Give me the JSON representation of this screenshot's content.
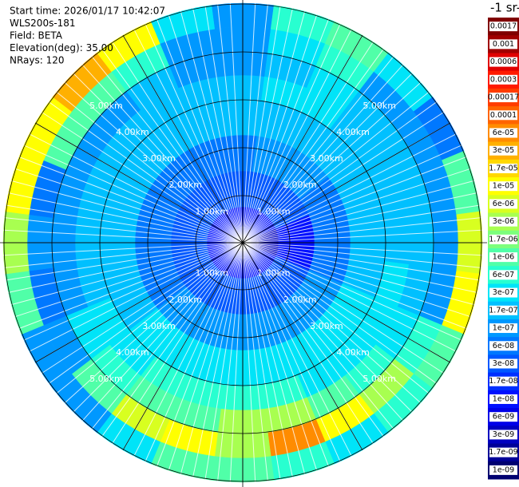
{
  "chart_data": {
    "type": "polar-heatmap",
    "header": [
      "Start time: 2026/01/17 10:42:07",
      "WLS200s-181",
      "Field: BETA",
      "Elevation(deg): 35.00",
      "NRays: 120"
    ],
    "colorbar_title": "-1 sr-",
    "colorbar": [
      {
        "value": 0.0017,
        "label": "0.0017"
      },
      {
        "value": 0.001,
        "label": "0.001"
      },
      {
        "value": 0.0006,
        "label": "0.0006"
      },
      {
        "value": 0.0003,
        "label": "0.0003"
      },
      {
        "value": 0.00017,
        "label": "0.00017"
      },
      {
        "value": 0.0001,
        "label": "0.0001"
      },
      {
        "value": 6e-05,
        "label": "6e-05"
      },
      {
        "value": 3e-05,
        "label": "3e-05"
      },
      {
        "value": 1.7e-05,
        "label": "1.7e-05"
      },
      {
        "value": 1e-05,
        "label": "1e-05"
      },
      {
        "value": 6e-06,
        "label": "6e-06"
      },
      {
        "value": 3e-06,
        "label": "3e-06"
      },
      {
        "value": 1.7e-06,
        "label": "1.7e-06"
      },
      {
        "value": 1e-06,
        "label": "1e-06"
      },
      {
        "value": 6e-07,
        "label": "6e-07"
      },
      {
        "value": 3e-07,
        "label": "3e-07"
      },
      {
        "value": 1.7e-07,
        "label": "1.7e-07"
      },
      {
        "value": 1e-07,
        "label": "1e-07"
      },
      {
        "value": 6e-08,
        "label": "6e-08"
      },
      {
        "value": 3e-08,
        "label": "3e-08"
      },
      {
        "value": 1.7e-08,
        "label": "1.7e-08"
      },
      {
        "value": 1e-08,
        "label": "1e-08"
      },
      {
        "value": 6e-09,
        "label": "6e-09"
      },
      {
        "value": 3e-09,
        "label": "3e-09"
      },
      {
        "value": 1.7e-09,
        "label": "1.7e-09"
      },
      {
        "value": 1e-09,
        "label": "1e-09"
      }
    ],
    "colors": [
      "#800000",
      "#a00000",
      "#e00000",
      "#ff1a00",
      "#ff3c00",
      "#ff6400",
      "#ff8c00",
      "#ffb000",
      "#ffd800",
      "#ffff00",
      "#d8ff20",
      "#a8ff50",
      "#7cff7c",
      "#50ffa8",
      "#28ffd0",
      "#00e4f8",
      "#00c0ff",
      "#0098ff",
      "#0078ff",
      "#0058ff",
      "#0030ff",
      "#0010ff",
      "#0000e8",
      "#0000c0",
      "#000098",
      "#000070"
    ],
    "rlim": [
      0,
      5
    ],
    "rticks": [
      {
        "value": 1,
        "label": "1.00km"
      },
      {
        "value": 2,
        "label": "2.00km"
      },
      {
        "value": 3,
        "label": "3.00km"
      },
      {
        "value": 4,
        "label": "4.00km"
      },
      {
        "value": 5,
        "label": "5.00km"
      }
    ],
    "range_edges": [
      0.1,
      0.75,
      1.5,
      2.25,
      3,
      3.5,
      4,
      4.5,
      5
    ],
    "azimuths": [
      0,
      15,
      30,
      45,
      60,
      75,
      90,
      105,
      120,
      135,
      150,
      165,
      180,
      195,
      210,
      225,
      240,
      255,
      270,
      285,
      300,
      315,
      330,
      345
    ],
    "values": [
      [
        1e-08,
        3e-08,
        6e-08,
        1.7e-07,
        1.7e-07,
        1e-07,
        1e-07,
        1e-07
      ],
      [
        1e-08,
        3e-08,
        1e-07,
        1.7e-07,
        3e-07,
        1.7e-07,
        3e-07,
        6e-07
      ],
      [
        1e-08,
        3e-08,
        1e-07,
        1.7e-07,
        3e-07,
        3e-07,
        6e-07,
        1e-06
      ],
      [
        1e-08,
        3e-08,
        1e-07,
        1.7e-07,
        1.7e-07,
        1.7e-07,
        1e-07,
        3e-07
      ],
      [
        1e-08,
        3e-08,
        6e-08,
        1.7e-07,
        1.7e-07,
        1.7e-07,
        1e-07,
        6e-08
      ],
      [
        3e-09,
        1e-08,
        6e-08,
        1.7e-07,
        1.7e-07,
        1.7e-07,
        1e-07,
        1e-06
      ],
      [
        3e-09,
        1e-08,
        6e-08,
        1.7e-07,
        1.7e-07,
        1.7e-07,
        1e-07,
        6e-06
      ],
      [
        3e-09,
        1e-08,
        6e-08,
        1.7e-07,
        3e-07,
        1.7e-07,
        1e-07,
        1e-05
      ],
      [
        1e-08,
        3e-08,
        1e-07,
        3e-07,
        3e-07,
        3e-07,
        6e-07,
        1e-06
      ],
      [
        1e-08,
        3e-08,
        1e-07,
        3e-07,
        3e-07,
        6e-07,
        3e-06,
        6e-07
      ],
      [
        1e-08,
        3e-08,
        1e-07,
        3e-07,
        3e-07,
        1e-06,
        1e-05,
        3e-07
      ],
      [
        1e-08,
        3e-08,
        1e-07,
        3e-07,
        6e-07,
        3e-06,
        6e-05,
        6e-07
      ],
      [
        1e-08,
        3e-08,
        1e-07,
        3e-07,
        6e-07,
        3e-06,
        3e-06,
        1e-06
      ],
      [
        1e-08,
        3e-08,
        1e-07,
        3e-07,
        6e-07,
        1e-06,
        1e-05,
        1e-06
      ],
      [
        1e-08,
        3e-08,
        1e-07,
        3e-07,
        6e-07,
        1e-06,
        6e-06,
        3e-07
      ],
      [
        1e-08,
        3e-08,
        1e-07,
        3e-07,
        3e-07,
        6e-07,
        1e-06,
        1e-07
      ],
      [
        1e-08,
        3e-08,
        6e-08,
        1.7e-07,
        3e-07,
        3e-07,
        1e-07,
        1e-07
      ],
      [
        1e-08,
        3e-08,
        6e-08,
        1.7e-07,
        1.7e-07,
        1e-07,
        6e-08,
        1e-06
      ],
      [
        1e-08,
        3e-08,
        6e-08,
        1.7e-07,
        1.7e-07,
        1e-07,
        1e-07,
        3e-06
      ],
      [
        1e-08,
        3e-08,
        6e-08,
        1.7e-07,
        1.7e-07,
        1e-07,
        6e-08,
        1e-05
      ],
      [
        1e-08,
        3e-08,
        6e-08,
        1.7e-07,
        1.7e-07,
        1e-07,
        1e-06,
        1e-05
      ],
      [
        1e-08,
        3e-08,
        6e-08,
        1.7e-07,
        1.7e-07,
        1e-07,
        1e-06,
        3e-05
      ],
      [
        1e-08,
        3e-08,
        6e-08,
        1.7e-07,
        1.7e-07,
        1.7e-07,
        6e-07,
        1e-05
      ],
      [
        1e-08,
        3e-08,
        6e-08,
        1.7e-07,
        1.7e-07,
        1e-07,
        1e-07,
        3e-07
      ]
    ]
  }
}
